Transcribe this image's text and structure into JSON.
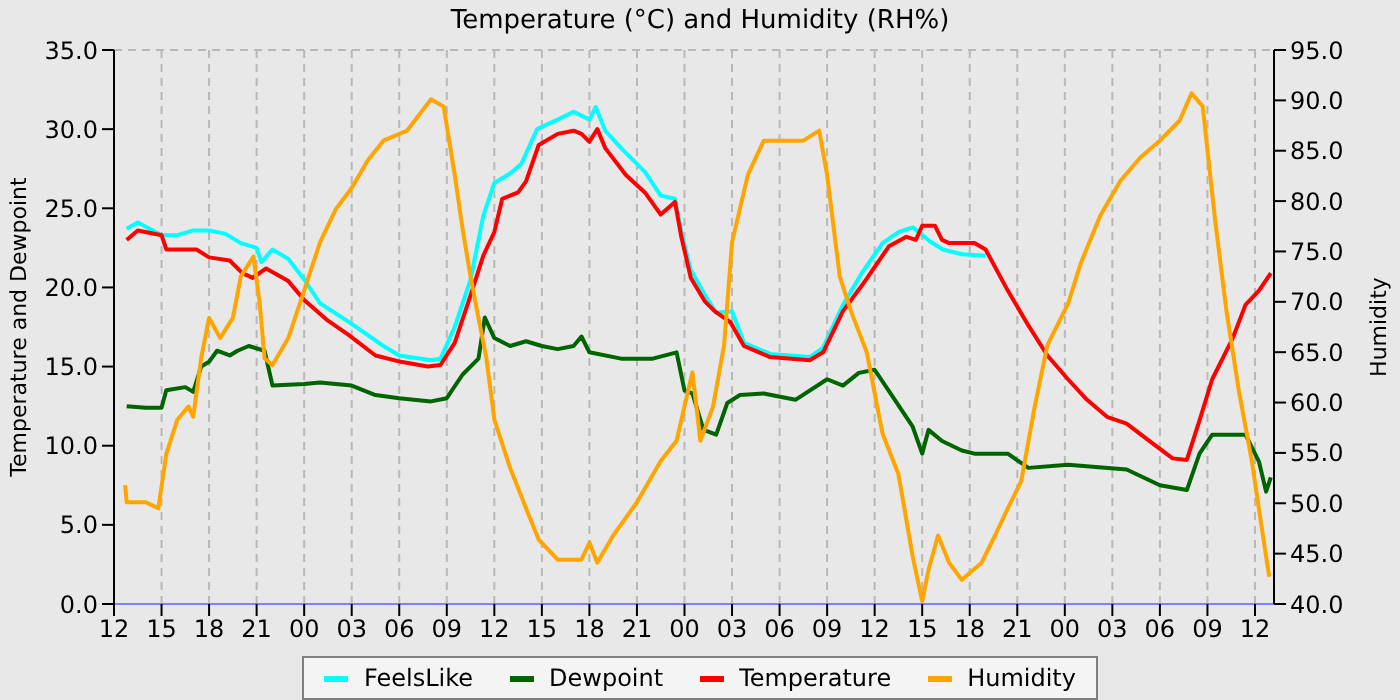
{
  "chart_data": {
    "type": "line",
    "title": "Temperature (°C) and Humidity (RH%)",
    "ylabel": "Temperature and Dewpoint",
    "y2label": "Humidity",
    "xlim": [
      12,
      85.2
    ],
    "xticks": [
      {
        "value": 12,
        "label": "12"
      },
      {
        "value": 15,
        "label": "15"
      },
      {
        "value": 18,
        "label": "18"
      },
      {
        "value": 21,
        "label": "21"
      },
      {
        "value": 24,
        "label": "00"
      },
      {
        "value": 27,
        "label": "03"
      },
      {
        "value": 30,
        "label": "06"
      },
      {
        "value": 33,
        "label": "09"
      },
      {
        "value": 36,
        "label": "12"
      },
      {
        "value": 39,
        "label": "15"
      },
      {
        "value": 42,
        "label": "18"
      },
      {
        "value": 45,
        "label": "21"
      },
      {
        "value": 48,
        "label": "00"
      },
      {
        "value": 51,
        "label": "03"
      },
      {
        "value": 54,
        "label": "06"
      },
      {
        "value": 57,
        "label": "09"
      },
      {
        "value": 60,
        "label": "12"
      },
      {
        "value": 63,
        "label": "15"
      },
      {
        "value": 66,
        "label": "18"
      },
      {
        "value": 69,
        "label": "21"
      },
      {
        "value": 72,
        "label": "00"
      },
      {
        "value": 75,
        "label": "03"
      },
      {
        "value": 78,
        "label": "06"
      },
      {
        "value": 81,
        "label": "09"
      },
      {
        "value": 84,
        "label": "12"
      }
    ],
    "ylim": [
      0,
      35
    ],
    "yticks": [
      {
        "value": 0,
        "label": "0.0"
      },
      {
        "value": 5,
        "label": "5.0"
      },
      {
        "value": 10,
        "label": "10.0"
      },
      {
        "value": 15,
        "label": "15.0"
      },
      {
        "value": 20,
        "label": "20.0"
      },
      {
        "value": 25,
        "label": "25.0"
      },
      {
        "value": 30,
        "label": "30.0"
      },
      {
        "value": 35,
        "label": "35.0"
      }
    ],
    "y2lim": [
      40,
      95
    ],
    "y2ticks": [
      {
        "value": 40,
        "label": "40.0"
      },
      {
        "value": 45,
        "label": "45.0"
      },
      {
        "value": 50,
        "label": "50.0"
      },
      {
        "value": 55,
        "label": "55.0"
      },
      {
        "value": 60,
        "label": "60.0"
      },
      {
        "value": 65,
        "label": "65.0"
      },
      {
        "value": 70,
        "label": "70.0"
      },
      {
        "value": 75,
        "label": "75.0"
      },
      {
        "value": 80,
        "label": "80.0"
      },
      {
        "value": 85,
        "label": "85.0"
      },
      {
        "value": 90,
        "label": "90.0"
      },
      {
        "value": 95,
        "label": "95.0"
      }
    ],
    "grid": true,
    "legend": "bottom",
    "marker": "none",
    "line_style": "solid",
    "series": [
      {
        "name": "FeelsLike",
        "color": "#00ffff",
        "x": [
          12.8,
          13.5,
          15,
          16,
          17,
          18,
          19,
          20,
          21,
          21.3,
          22,
          23,
          24,
          25,
          27,
          29,
          30,
          32,
          32.6,
          33.5,
          34.5,
          35.3,
          36,
          37,
          37.7,
          38.7,
          40,
          41,
          42,
          42.4,
          43,
          44,
          45.5,
          46.5,
          47.4,
          47.8,
          48.4,
          49.3,
          50,
          51,
          51.75,
          53.4,
          55.9,
          56.75,
          58,
          59.25,
          60.5,
          61.5,
          62.4,
          63.5,
          64.3,
          65.5,
          67
        ],
        "values": [
          23.7,
          24.1,
          23.3,
          23.3,
          23.6,
          23.6,
          23.4,
          22.8,
          22.5,
          21.6,
          22.4,
          21.8,
          20.5,
          19.0,
          17.7,
          16.3,
          15.7,
          15.4,
          15.5,
          17.5,
          20.5,
          24.5,
          26.6,
          27.2,
          27.8,
          30.0,
          30.6,
          31.1,
          30.6,
          31.4,
          29.9,
          28.8,
          27.3,
          25.8,
          25.6,
          23.5,
          21.1,
          19.5,
          18.4,
          18.5,
          16.5,
          15.8,
          15.6,
          16.2,
          18.9,
          21.0,
          22.8,
          23.5,
          23.8,
          22.9,
          22.4,
          22.1,
          22.0
        ]
      },
      {
        "name": "Dewpoint",
        "color": "#006400",
        "x": [
          12.8,
          14,
          15,
          15.3,
          16.5,
          17,
          17.5,
          18,
          18.5,
          19.3,
          19.8,
          20.5,
          21.5,
          22,
          24,
          25,
          27,
          28.5,
          30,
          32,
          33,
          34,
          35,
          35.4,
          36,
          37,
          38,
          39,
          40,
          41,
          41.5,
          42,
          44,
          46,
          47.5,
          48,
          48.5,
          49.2,
          50,
          50.7,
          51.5,
          53,
          55,
          57,
          58,
          59,
          60,
          61,
          62.4,
          63,
          63.4,
          64.25,
          65.5,
          66.3,
          68.4,
          69.7,
          72.2,
          75.9,
          78,
          79.7,
          80.5,
          81.3,
          83.4,
          84.25,
          84.7,
          85
        ],
        "values": [
          12.5,
          12.4,
          12.4,
          13.5,
          13.7,
          13.4,
          15.0,
          15.3,
          16.0,
          15.7,
          16.0,
          16.3,
          16.0,
          13.8,
          13.9,
          14.0,
          13.8,
          13.2,
          13.0,
          12.8,
          13.0,
          14.5,
          15.5,
          18.1,
          16.8,
          16.3,
          16.6,
          16.3,
          16.1,
          16.3,
          16.9,
          15.9,
          15.5,
          15.5,
          15.9,
          13.5,
          13.3,
          11.0,
          10.7,
          12.7,
          13.2,
          13.3,
          12.9,
          14.2,
          13.8,
          14.6,
          14.8,
          13.3,
          11.2,
          9.5,
          11.0,
          10.3,
          9.7,
          9.5,
          9.5,
          8.6,
          8.8,
          8.5,
          7.5,
          7.2,
          9.5,
          10.7,
          10.7,
          9.0,
          7.1,
          8.0
        ]
      },
      {
        "name": "Temperature",
        "color": "#ff0000",
        "x": [
          12.8,
          13.5,
          15,
          15.3,
          17.2,
          18,
          19.3,
          20.1,
          20.75,
          21.6,
          23,
          24,
          25.5,
          26.8,
          28.5,
          30.1,
          31.8,
          32.6,
          33.5,
          34.5,
          35.3,
          36,
          36.5,
          37.5,
          38,
          38.8,
          40,
          41,
          41.5,
          42,
          42.5,
          43,
          44.3,
          45.5,
          46.5,
          47.4,
          47.8,
          48.4,
          49.3,
          49.9,
          50.9,
          51.75,
          53.4,
          55.9,
          56.75,
          58,
          59.25,
          60.9,
          62,
          62.6,
          63,
          63.8,
          64.25,
          64.7,
          66.3,
          67,
          68.4,
          69.7,
          70.9,
          72.2,
          73.4,
          74.7,
          75.9,
          77.6,
          78.8,
          79.7,
          80.5,
          81.3,
          82.6,
          83.4,
          84.25,
          85
        ],
        "values": [
          23.0,
          23.6,
          23.3,
          22.4,
          22.4,
          21.9,
          21.7,
          20.9,
          20.6,
          21.2,
          20.4,
          19.2,
          17.9,
          17.0,
          15.7,
          15.3,
          15.0,
          15.1,
          16.5,
          19.5,
          22.0,
          23.5,
          25.6,
          26.0,
          26.7,
          29.0,
          29.7,
          29.9,
          29.7,
          29.2,
          30.0,
          28.8,
          27.1,
          26.0,
          24.6,
          25.4,
          23.2,
          20.6,
          19.1,
          18.5,
          17.8,
          16.3,
          15.6,
          15.4,
          15.9,
          18.5,
          20.2,
          22.6,
          23.2,
          23.0,
          23.9,
          23.9,
          23.0,
          22.8,
          22.8,
          22.4,
          19.8,
          17.6,
          15.7,
          14.2,
          12.9,
          11.8,
          11.4,
          10.1,
          9.2,
          9.1,
          11.6,
          14.2,
          16.8,
          18.9,
          19.8,
          20.9
        ]
      },
      {
        "name": "Humidity",
        "color": "#ffa500",
        "axis": "y2",
        "x": [
          12.7,
          12.8,
          14,
          14.8,
          15.3,
          16,
          16.7,
          17,
          17.5,
          18,
          18.7,
          19.5,
          20,
          20.8,
          21.2,
          21.5,
          22,
          23,
          24,
          25,
          26,
          27,
          28,
          29,
          30.5,
          32,
          32.8,
          33.5,
          34,
          34.5,
          35,
          35.5,
          36,
          37,
          38,
          38.8,
          40,
          41.5,
          42,
          42.5,
          43.5,
          45,
          46.5,
          47.5,
          48,
          48.5,
          49,
          49.8,
          50.5,
          51,
          52,
          53,
          54,
          55.5,
          56.5,
          57,
          57.8,
          58.5,
          59.5,
          60.5,
          61.5,
          62.4,
          63,
          63.4,
          64,
          64.7,
          65.5,
          66.75,
          67.6,
          68.4,
          69.25,
          70.1,
          70.9,
          72.2,
          73,
          74.25,
          75.5,
          76.75,
          78,
          79.25,
          80,
          80.7,
          81.5,
          82.2,
          83,
          83.8,
          84.5,
          84.9
        ],
        "values": [
          51.8,
          50.1,
          50.1,
          49.5,
          54.9,
          58.3,
          59.6,
          58.6,
          64.4,
          68.4,
          66.4,
          68.4,
          72.5,
          74.5,
          69.8,
          64.4,
          63.7,
          66.4,
          71.1,
          75.9,
          79.2,
          81.3,
          84.0,
          86.0,
          87.0,
          90.1,
          89.4,
          82.6,
          77.2,
          72.5,
          68.4,
          64.4,
          58.3,
          53.5,
          49.5,
          46.4,
          44.4,
          44.4,
          46.1,
          44.1,
          46.8,
          50.1,
          54.2,
          56.2,
          59.6,
          63.0,
          56.2,
          59.6,
          65.7,
          75.9,
          82.6,
          86.0,
          86.0,
          86.0,
          87.0,
          82.6,
          72.5,
          69.1,
          65.0,
          56.9,
          52.9,
          44.7,
          40.3,
          43.4,
          46.8,
          44.1,
          42.4,
          44.1,
          46.8,
          49.5,
          52.2,
          59.6,
          65.7,
          69.8,
          73.8,
          78.6,
          82.0,
          84.3,
          86.0,
          88.0,
          90.7,
          89.4,
          77.9,
          69.1,
          61.0,
          54.2,
          46.8,
          42.7
        ]
      }
    ]
  }
}
